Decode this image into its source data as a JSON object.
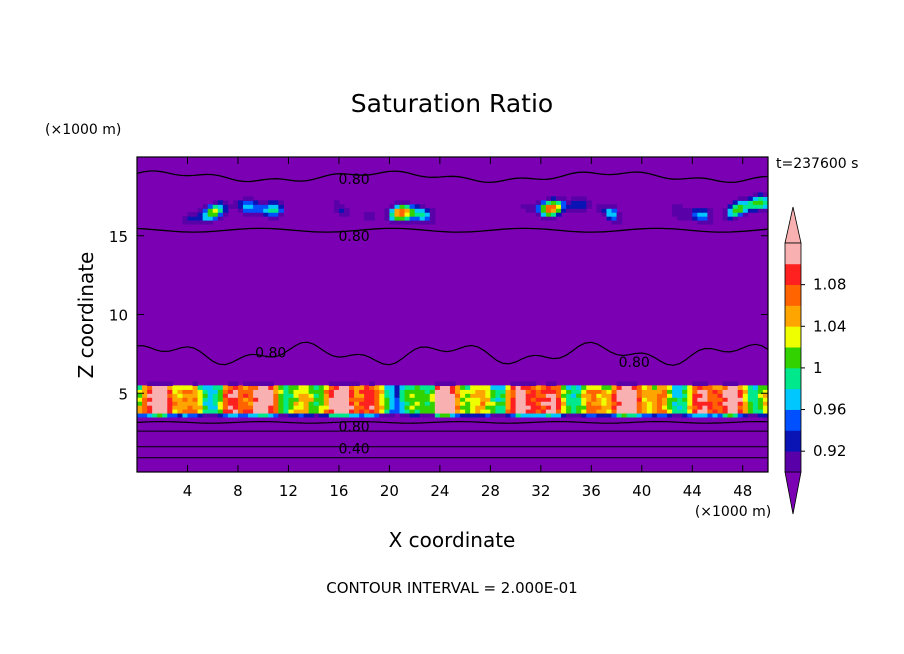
{
  "chart_data": {
    "type": "heatmap",
    "title": "Saturation Ratio",
    "xlabel": "X coordinate",
    "ylabel": "Z coordinate",
    "x_unit": "(×1000 m)",
    "y_unit": "(×1000 m)",
    "time_label": "t=237600 s",
    "footer": "CONTOUR INTERVAL = 2.000E-01",
    "xlim": [
      0,
      50
    ],
    "ylim": [
      0,
      20
    ],
    "x_ticks": [
      4,
      8,
      12,
      16,
      20,
      24,
      28,
      32,
      36,
      40,
      44,
      48
    ],
    "y_ticks": [
      5,
      10,
      15
    ],
    "contour_labels": [
      {
        "text": "0.80",
        "x": 17.2,
        "z": 18.6
      },
      {
        "text": "0.80",
        "x": 17.2,
        "z": 15.0
      },
      {
        "text": "0.80",
        "x": 10.6,
        "z": 7.6
      },
      {
        "text": "0.80",
        "x": 39.4,
        "z": 7.0
      },
      {
        "text": "0.80",
        "x": 17.2,
        "z": 2.9
      },
      {
        "text": "0.40",
        "x": 17.2,
        "z": 1.5
      }
    ],
    "colorbar": {
      "levels": [
        0.92,
        0.94,
        0.96,
        0.98,
        1.0,
        1.02,
        1.04,
        1.06,
        1.08,
        1.1
      ],
      "tick_labels": [
        "0.92",
        "0.96",
        "1",
        "1.04",
        "1.08"
      ],
      "colors": [
        "#7b00b4",
        "#5a00a8",
        "#0a14b4",
        "#0050ff",
        "#00c8ff",
        "#00e88c",
        "#32d200",
        "#f0ff00",
        "#ffa500",
        "#ff6400",
        "#ff2020",
        "#f8b0b0"
      ]
    }
  }
}
